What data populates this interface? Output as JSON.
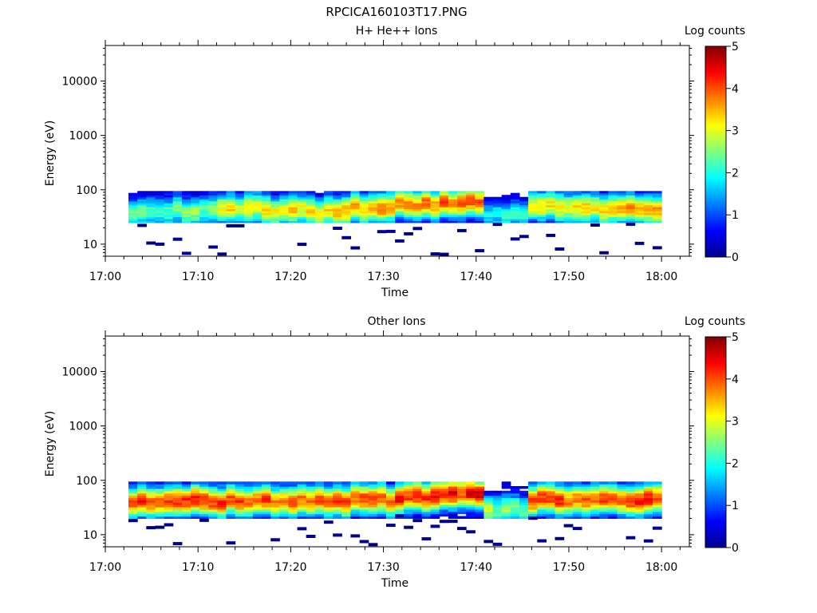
{
  "figure_title": "RPCICA160103T17.PNG",
  "panels_title_ref": [
    "H+ He++ Ions",
    "Other Ions"
  ],
  "chart_data": [
    {
      "type": "heatmap",
      "title": "H+ He++ Ions",
      "xlabel": "Time",
      "ylabel": "Energy (eV)",
      "x_ticks": [
        "17:00",
        "17:10",
        "17:20",
        "17:30",
        "17:40",
        "17:50",
        "18:00"
      ],
      "xlim_minutes": [
        0,
        63
      ],
      "x_data_range_minutes": [
        2.5,
        60
      ],
      "y_scale": "log",
      "ylim": [
        6,
        45000
      ],
      "y_ticks": [
        "10",
        "100",
        "1000",
        "10000"
      ],
      "colorbar": {
        "label": "Log counts",
        "min": 0,
        "max": 5,
        "ticks": [
          "0",
          "1",
          "2",
          "3",
          "4",
          "5"
        ],
        "colormap": "jet"
      },
      "peak_energy_eV": [
        40,
        42,
        45,
        42,
        40,
        48,
        55,
        60,
        35,
        50,
        45,
        45
      ],
      "peak_log_counts": [
        2.3,
        2.5,
        3.2,
        3.4,
        3.6,
        3.7,
        3.9,
        4.0,
        2.2,
        3.4,
        3.6,
        3.6
      ],
      "band_energy_range_eV": [
        25,
        95
      ]
    },
    {
      "type": "heatmap",
      "title": "Other Ions",
      "xlabel": "Time",
      "ylabel": "Energy (eV)",
      "x_ticks": [
        "17:00",
        "17:10",
        "17:20",
        "17:30",
        "17:40",
        "17:50",
        "18:00"
      ],
      "xlim_minutes": [
        0,
        63
      ],
      "x_data_range_minutes": [
        2.5,
        60
      ],
      "y_scale": "log",
      "ylim": [
        6,
        45000
      ],
      "y_ticks": [
        "10",
        "100",
        "1000",
        "10000"
      ],
      "colorbar": {
        "label": "Log counts",
        "min": 0,
        "max": 5,
        "ticks": [
          "0",
          "1",
          "2",
          "3",
          "4",
          "5"
        ],
        "colormap": "jet"
      },
      "peak_energy_eV": [
        42,
        42,
        42,
        42,
        42,
        45,
        50,
        55,
        30,
        45,
        45,
        45
      ],
      "peak_log_counts": [
        4.1,
        4.3,
        4.2,
        4.1,
        4.1,
        4.2,
        4.4,
        4.5,
        2.8,
        4.2,
        4.2,
        4.3
      ],
      "band_energy_range_eV": [
        20,
        95
      ]
    }
  ]
}
